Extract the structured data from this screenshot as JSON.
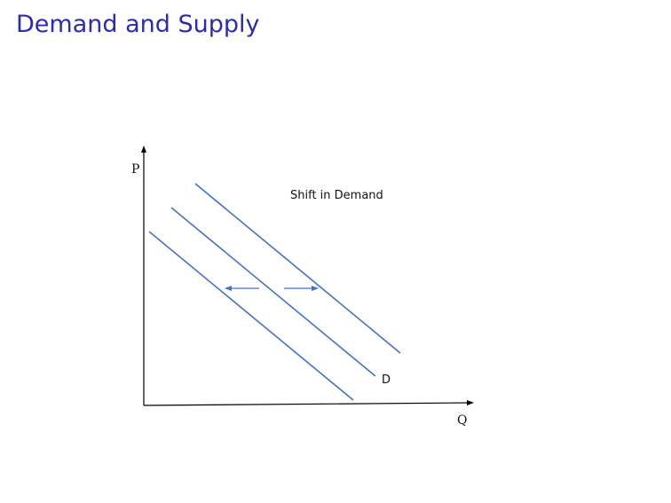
{
  "title": "Demand and Supply",
  "diagram": {
    "annotation": "Shift in Demand",
    "y_axis_label": "P",
    "x_axis_label": "Q",
    "curve_label": "D",
    "colors": {
      "curve": "#4472c4",
      "axis": "#000000",
      "title": "#2b2bb4"
    }
  }
}
